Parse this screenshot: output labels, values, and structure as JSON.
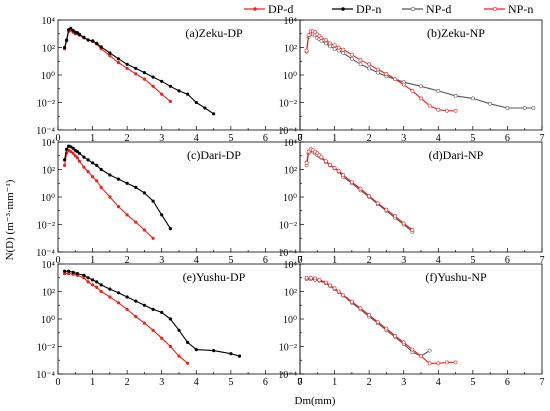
{
  "figure": {
    "xlabel": "Dm(mm)",
    "ylabel": "N(D) (m⁻³·mm⁻¹)"
  },
  "legend": {
    "placement": "top",
    "entries": [
      {
        "label": "DP-d",
        "color": "#e8241c",
        "marker": "dot"
      },
      {
        "label": "DP-n",
        "color": "#000000",
        "marker": "dot"
      },
      {
        "label": "NP-d",
        "color": "#555555",
        "marker": "open"
      },
      {
        "label": "NP-n",
        "color": "#e8241c",
        "marker": "open"
      }
    ]
  },
  "chart_data": [
    {
      "type": "line",
      "title": "(a)Zeku-DP",
      "log_y": true,
      "xlim": [
        0,
        7
      ],
      "ylim": [
        0.0001,
        10000
      ],
      "x_ticks": [
        "0",
        "1",
        "2",
        "3",
        "4",
        "5",
        "6",
        "7"
      ],
      "y_ticks": [
        "10⁻⁴",
        "10⁻²",
        "10⁰",
        "10²",
        "10⁴"
      ],
      "series": [
        {
          "name": "DP-d",
          "x": [
            0.19,
            0.25,
            0.31,
            0.37,
            0.44,
            0.5,
            0.56,
            0.62,
            0.75,
            0.87,
            1.0,
            1.12,
            1.25,
            1.5,
            1.75,
            2.0,
            2.25,
            2.5,
            2.75,
            3.0,
            3.25
          ],
          "y": [
            80,
            300,
            1500,
            1800,
            1300,
            1000,
            1000,
            800,
            500,
            350,
            280,
            180,
            80,
            25,
            8,
            3,
            1.2,
            0.5,
            0.15,
            0.04,
            0.012
          ]
        },
        {
          "name": "DP-n",
          "x": [
            0.19,
            0.25,
            0.31,
            0.37,
            0.44,
            0.5,
            0.56,
            0.62,
            0.75,
            0.87,
            1.0,
            1.12,
            1.25,
            1.5,
            1.75,
            2.0,
            2.25,
            2.5,
            2.75,
            3.0,
            3.25,
            3.5,
            3.75,
            4.0,
            4.25,
            4.5
          ],
          "y": [
            100,
            350,
            2000,
            2500,
            1700,
            1300,
            1200,
            900,
            550,
            350,
            300,
            200,
            110,
            40,
            15,
            6,
            3,
            1.5,
            0.7,
            0.35,
            0.15,
            0.07,
            0.04,
            0.01,
            0.004,
            0.0015
          ]
        }
      ]
    },
    {
      "type": "line",
      "title": "(b)Zeku-NP",
      "log_y": true,
      "xlim": [
        0,
        7
      ],
      "ylim": [
        0.0001,
        10000
      ],
      "x_ticks": [
        "0",
        "1",
        "2",
        "3",
        "4",
        "5",
        "6",
        "7"
      ],
      "y_ticks": [
        "10⁻⁴",
        "10⁻²",
        "10⁰",
        "10²",
        "10⁴"
      ],
      "series": [
        {
          "name": "NP-d",
          "x": [
            0.19,
            0.25,
            0.31,
            0.37,
            0.44,
            0.5,
            0.56,
            0.62,
            0.75,
            0.87,
            1.0,
            1.12,
            1.25,
            1.5,
            1.75,
            2.0,
            2.25,
            2.5,
            2.75,
            3.0,
            3.5,
            4.0,
            4.5,
            5.0,
            5.5,
            6.0,
            6.5,
            6.75
          ],
          "y": [
            50,
            600,
            900,
            900,
            800,
            500,
            400,
            300,
            200,
            120,
            80,
            60,
            40,
            15,
            6,
            3,
            1.5,
            0.8,
            0.5,
            0.3,
            0.15,
            0.07,
            0.03,
            0.02,
            0.008,
            0.004,
            0.004,
            0.004
          ]
        },
        {
          "name": "NP-n",
          "x": [
            0.19,
            0.25,
            0.31,
            0.37,
            0.44,
            0.5,
            0.56,
            0.62,
            0.75,
            0.87,
            1.0,
            1.12,
            1.25,
            1.5,
            1.75,
            2.0,
            2.25,
            2.5,
            2.75,
            3.0,
            3.25,
            3.5,
            3.75,
            4.0,
            4.25,
            4.5
          ],
          "y": [
            60,
            800,
            1500,
            1500,
            1300,
            900,
            700,
            500,
            350,
            200,
            150,
            100,
            70,
            30,
            12,
            6,
            2.5,
            1.2,
            0.5,
            0.2,
            0.07,
            0.02,
            0.006,
            0.003,
            0.0025,
            0.0025
          ]
        }
      ]
    },
    {
      "type": "line",
      "title": "(c)Dari-DP",
      "log_y": true,
      "xlim": [
        0,
        7
      ],
      "ylim": [
        0.0001,
        10000
      ],
      "x_ticks": [
        "0",
        "1",
        "2",
        "3",
        "4",
        "5",
        "6",
        "7"
      ],
      "y_ticks": [
        "10⁻⁴",
        "10⁻²",
        "10⁰",
        "10²",
        "10⁴"
      ],
      "series": [
        {
          "name": "DP-d",
          "x": [
            0.19,
            0.25,
            0.31,
            0.37,
            0.44,
            0.5,
            0.56,
            0.62,
            0.75,
            0.87,
            1.0,
            1.12,
            1.25,
            1.5,
            1.75,
            2.0,
            2.25,
            2.5,
            2.75
          ],
          "y": [
            200,
            1500,
            2500,
            2000,
            1500,
            1000,
            700,
            400,
            150,
            70,
            30,
            15,
            5,
            1,
            0.2,
            0.05,
            0.015,
            0.004,
            0.001
          ]
        },
        {
          "name": "DP-n",
          "x": [
            0.19,
            0.25,
            0.31,
            0.37,
            0.44,
            0.5,
            0.56,
            0.62,
            0.75,
            0.87,
            1.0,
            1.12,
            1.25,
            1.5,
            1.75,
            2.0,
            2.25,
            2.5,
            2.75,
            3.0,
            3.25
          ],
          "y": [
            500,
            3000,
            5000,
            4500,
            3500,
            2500,
            2000,
            1500,
            800,
            500,
            300,
            200,
            100,
            40,
            20,
            10,
            5,
            2,
            0.5,
            0.05,
            0.005
          ]
        }
      ]
    },
    {
      "type": "line",
      "title": "(d)Dari-NP",
      "log_y": true,
      "xlim": [
        0,
        7
      ],
      "ylim": [
        0.0001,
        10000
      ],
      "x_ticks": [
        "0",
        "1",
        "2",
        "3",
        "4",
        "5",
        "6",
        "7"
      ],
      "y_ticks": [
        "10⁻⁴",
        "10⁻²",
        "10⁰",
        "10²",
        "10⁴"
      ],
      "series": [
        {
          "name": "NP-d",
          "x": [
            0.19,
            0.25,
            0.31,
            0.37,
            0.44,
            0.5,
            0.56,
            0.62,
            0.75,
            0.87,
            1.0,
            1.12,
            1.25,
            1.5,
            1.75,
            2.0,
            2.25,
            2.5,
            2.75,
            3.0,
            3.25
          ],
          "y": [
            200,
            1500,
            2500,
            2000,
            1500,
            1200,
            900,
            700,
            350,
            200,
            120,
            70,
            30,
            10,
            3,
            1,
            0.3,
            0.1,
            0.03,
            0.01,
            0.003
          ]
        },
        {
          "name": "NP-n",
          "x": [
            0.19,
            0.25,
            0.31,
            0.37,
            0.44,
            0.5,
            0.56,
            0.62,
            0.75,
            0.87,
            1.0,
            1.12,
            1.25,
            1.5,
            1.75,
            2.0,
            2.25,
            2.5,
            2.75,
            3.0,
            3.25
          ],
          "y": [
            300,
            2000,
            3000,
            2500,
            2000,
            1500,
            1100,
            800,
            400,
            220,
            130,
            80,
            40,
            12,
            4,
            1.2,
            0.35,
            0.12,
            0.04,
            0.012,
            0.004
          ]
        }
      ]
    },
    {
      "type": "line",
      "title": "(e)Yushu-DP",
      "log_y": true,
      "xlim": [
        0,
        7
      ],
      "ylim": [
        0.0001,
        10000
      ],
      "x_ticks": [
        "0",
        "1",
        "2",
        "3",
        "4",
        "5",
        "6",
        "7"
      ],
      "y_ticks": [
        "10⁻⁴",
        "10⁻²",
        "10⁰",
        "10²",
        "10⁴"
      ],
      "series": [
        {
          "name": "DP-d",
          "x": [
            0.19,
            0.31,
            0.44,
            0.56,
            0.75,
            0.87,
            1.0,
            1.12,
            1.25,
            1.5,
            1.75,
            2.0,
            2.25,
            2.5,
            2.75,
            3.0,
            3.25,
            3.5,
            3.75
          ],
          "y": [
            2000,
            2000,
            1800,
            1500,
            1000,
            500,
            300,
            200,
            100,
            40,
            15,
            5,
            1.5,
            0.5,
            0.15,
            0.04,
            0.01,
            0.002,
            0.0006
          ]
        },
        {
          "name": "DP-n",
          "x": [
            0.19,
            0.31,
            0.44,
            0.56,
            0.75,
            0.87,
            1.0,
            1.12,
            1.25,
            1.5,
            1.75,
            2.0,
            2.25,
            2.5,
            2.75,
            3.0,
            3.25,
            3.5,
            3.75,
            4.0,
            4.5,
            5.0,
            5.25
          ],
          "y": [
            3000,
            3000,
            2500,
            2000,
            1500,
            1000,
            700,
            500,
            300,
            150,
            80,
            40,
            20,
            10,
            5,
            3,
            1,
            0.15,
            0.02,
            0.006,
            0.005,
            0.003,
            0.002
          ]
        }
      ]
    },
    {
      "type": "line",
      "title": "(f)Yushu-NP",
      "log_y": true,
      "xlim": [
        0,
        7
      ],
      "ylim": [
        0.0001,
        10000
      ],
      "x_ticks": [
        "0",
        "1",
        "2",
        "3",
        "4",
        "5",
        "6",
        "7"
      ],
      "y_ticks": [
        "10⁻⁴",
        "10⁻²",
        "10⁰",
        "10²",
        "10⁴"
      ],
      "series": [
        {
          "name": "NP-d",
          "x": [
            0.19,
            0.31,
            0.44,
            0.56,
            0.75,
            0.87,
            1.0,
            1.12,
            1.25,
            1.5,
            1.75,
            2.0,
            2.25,
            2.5,
            2.75,
            3.0,
            3.25,
            3.5,
            3.75
          ],
          "y": [
            800,
            800,
            700,
            600,
            400,
            250,
            150,
            90,
            50,
            15,
            5,
            1.5,
            0.5,
            0.15,
            0.05,
            0.015,
            0.004,
            0.002,
            0.005
          ]
        },
        {
          "name": "NP-n",
          "x": [
            0.19,
            0.31,
            0.44,
            0.56,
            0.75,
            0.87,
            1.0,
            1.12,
            1.25,
            1.5,
            1.75,
            2.0,
            2.25,
            2.5,
            2.75,
            3.0,
            3.25,
            3.5,
            3.75,
            4.0,
            4.25,
            4.5
          ],
          "y": [
            1000,
            1000,
            900,
            700,
            450,
            280,
            170,
            100,
            55,
            18,
            6,
            2,
            0.6,
            0.2,
            0.06,
            0.02,
            0.006,
            0.002,
            0.0006,
            0.0006,
            0.0007,
            0.0007
          ]
        }
      ]
    }
  ]
}
